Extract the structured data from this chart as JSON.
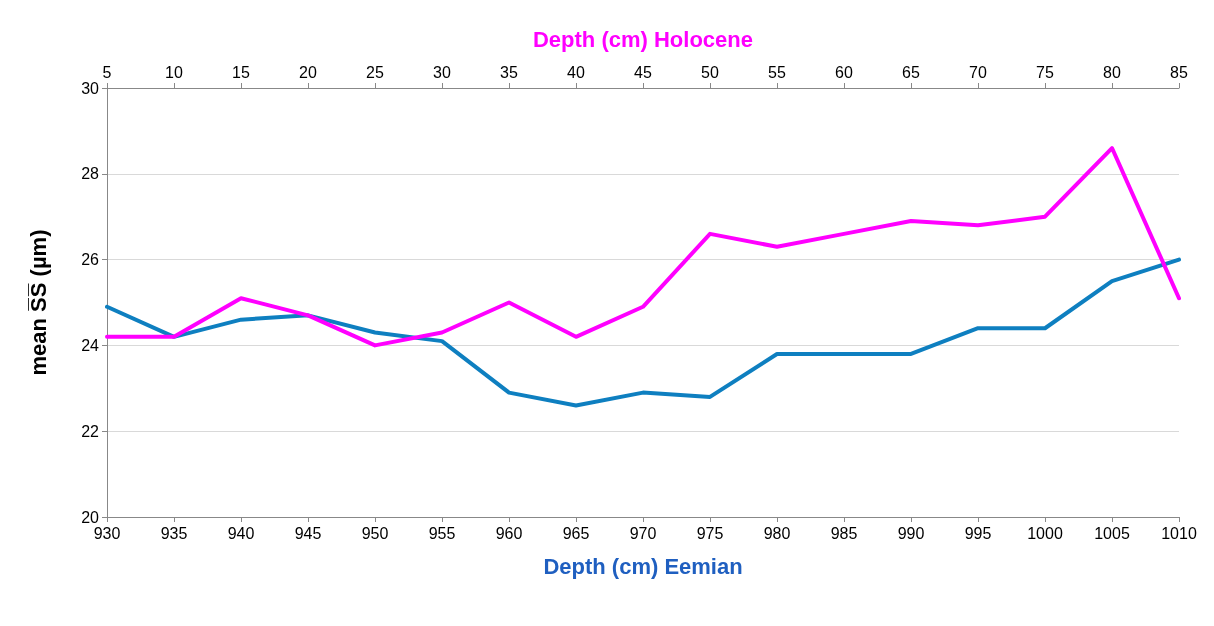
{
  "chart_data": {
    "type": "line",
    "xlabel": "Depth (cm) Eemian",
    "x2label": "Depth (cm) Holocene",
    "ylabel": "mean S̅S̅ (µm)",
    "xlim": [
      930,
      1010
    ],
    "xticks": [
      930,
      935,
      940,
      945,
      950,
      955,
      960,
      965,
      970,
      975,
      980,
      985,
      990,
      995,
      1000,
      1005,
      1010
    ],
    "x2lim": [
      5,
      85
    ],
    "x2ticks": [
      5,
      10,
      15,
      20,
      25,
      30,
      35,
      40,
      45,
      50,
      55,
      60,
      65,
      70,
      75,
      80,
      85
    ],
    "ylim": [
      20,
      30
    ],
    "yticks": [
      20,
      22,
      24,
      26,
      28,
      30
    ],
    "grid": "y",
    "marker": "none",
    "line_style": "solid",
    "series": [
      {
        "color": "#0e7fc0",
        "x": [
          930,
          935,
          940,
          945,
          950,
          955,
          960,
          965,
          970,
          975,
          980,
          985,
          990,
          995,
          1000,
          1005,
          1010
        ],
        "values": [
          24.9,
          24.2,
          24.6,
          24.7,
          24.3,
          24.1,
          22.9,
          22.6,
          22.9,
          22.8,
          23.8,
          23.8,
          23.8,
          24.4,
          24.4,
          25.5,
          26.0
        ]
      },
      {
        "color": "#ff00ff",
        "axis": "x2",
        "x": [
          5,
          10,
          15,
          20,
          25,
          30,
          35,
          40,
          45,
          50,
          55,
          60,
          65,
          70,
          75,
          80,
          85
        ],
        "values": [
          24.2,
          24.2,
          25.1,
          24.7,
          24.0,
          24.3,
          25.0,
          24.2,
          24.9,
          26.6,
          26.3,
          26.6,
          26.9,
          26.8,
          27.0,
          28.6,
          25.1
        ]
      }
    ]
  }
}
